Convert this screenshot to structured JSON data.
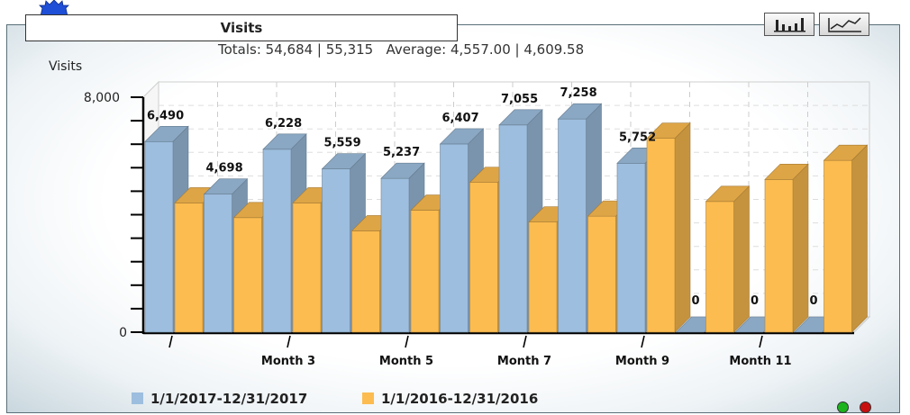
{
  "header": {
    "title": "Visits",
    "totals_line": "Totals: 54,684 | 55,315   Average: 4,557.00 | 4,609.58"
  },
  "toolbar": {
    "bar_chart_icon": "bar-chart-icon",
    "line_chart_icon": "line-chart-icon"
  },
  "status": {
    "green_color": "#1db31d",
    "red_color": "#c81010"
  },
  "chart_data": {
    "type": "bar",
    "title": "Visits",
    "ylabel": "Visits",
    "xlabel": "",
    "ylim": [
      0,
      8000
    ],
    "y_ticks": [
      "8,000",
      "0"
    ],
    "categories": [
      "",
      "",
      "Month 3",
      "",
      "Month 5",
      "",
      "Month 7",
      "",
      "Month 9",
      "",
      "Month 11",
      ""
    ],
    "series": [
      {
        "name": "1/1/2017-12/31/2017",
        "color": "#9dbede",
        "values": [
          6490,
          4698,
          6228,
          5559,
          5237,
          6407,
          7055,
          7258,
          5752,
          0,
          0,
          0
        ],
        "labels": [
          "6,490",
          "4,698",
          "6,228",
          "5,559",
          "5,237",
          "6,407",
          "7,055",
          "7,258",
          "5,752",
          "0",
          "0",
          "0"
        ]
      },
      {
        "name": "1/1/2016-12/31/2016",
        "color": "#fcbc50",
        "values": [
          4400,
          3900,
          4400,
          3450,
          4150,
          5100,
          3750,
          3950,
          6600,
          4450,
          5200,
          5850
        ]
      }
    ],
    "grid": true,
    "legend": "bottom-left"
  }
}
